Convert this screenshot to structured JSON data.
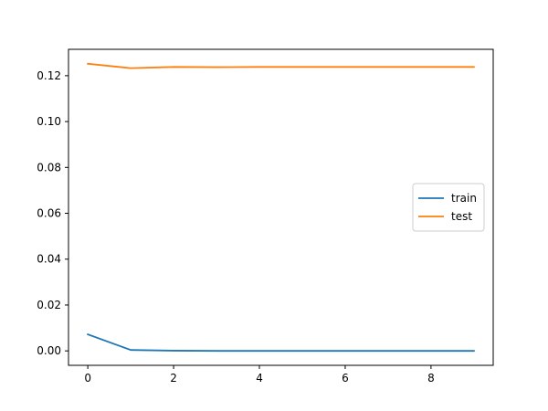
{
  "chart_data": {
    "type": "line",
    "title": "",
    "xlabel": "",
    "ylabel": "",
    "xlim": [
      -0.45,
      9.45
    ],
    "ylim": [
      -0.0063,
      0.1315
    ],
    "xticks": [
      0,
      2,
      4,
      6,
      8
    ],
    "xtick_labels": [
      "0",
      "2",
      "4",
      "6",
      "8"
    ],
    "yticks": [
      0.0,
      0.02,
      0.04,
      0.06,
      0.08,
      0.1,
      0.12
    ],
    "ytick_labels": [
      "0.00",
      "0.02",
      "0.04",
      "0.06",
      "0.08",
      "0.10",
      "0.12"
    ],
    "grid": false,
    "legend_position": "center-right",
    "x": [
      0,
      1,
      2,
      3,
      4,
      5,
      6,
      7,
      8,
      9
    ],
    "series": [
      {
        "name": "train",
        "color": "#1f77b4",
        "values": [
          0.0072,
          0.0004,
          0.0001,
          0.0,
          0.0,
          0.0,
          0.0,
          0.0,
          0.0,
          0.0
        ]
      },
      {
        "name": "test",
        "color": "#ff7f0e",
        "values": [
          0.1252,
          0.1233,
          0.1238,
          0.1237,
          0.1238,
          0.1238,
          0.1238,
          0.1238,
          0.1238,
          0.1238
        ]
      }
    ]
  }
}
